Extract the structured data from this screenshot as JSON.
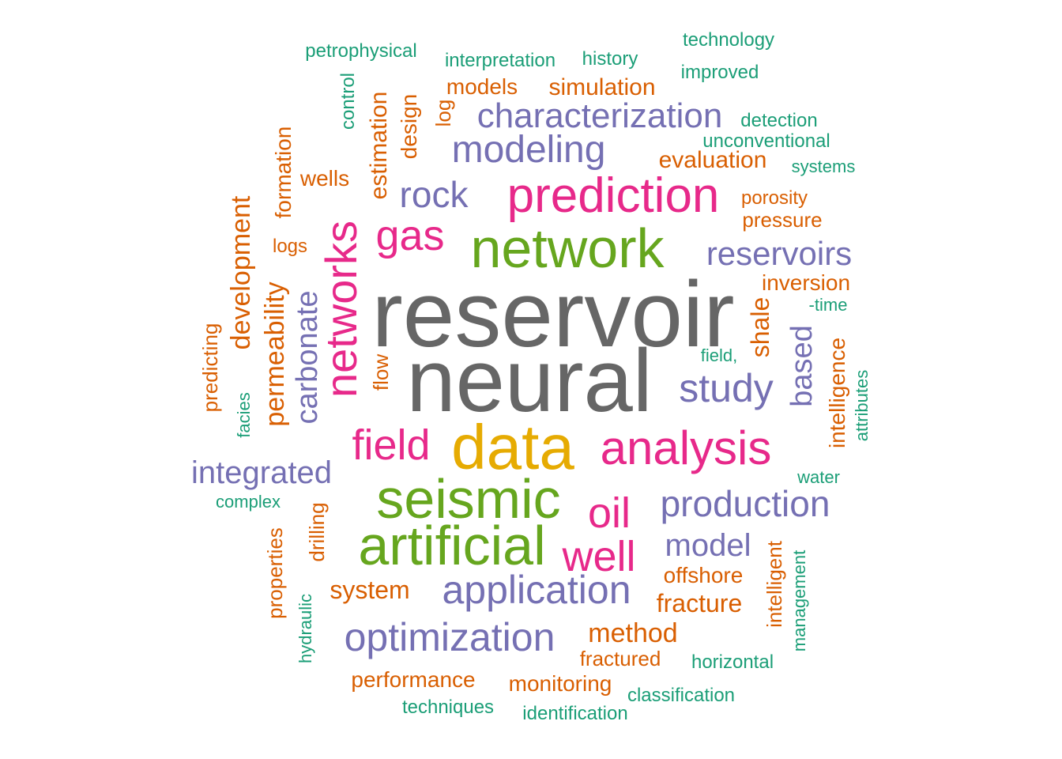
{
  "chart_data": {
    "type": "wordcloud",
    "palette": {
      "gray": "#666666",
      "green": "#66a61e",
      "pink": "#e7298a",
      "purple": "#7570b3",
      "orange": "#d95f02",
      "teal": "#1b9e77",
      "gold": "#e6ab02"
    },
    "words": [
      {
        "text": "reservoir",
        "color": "gray",
        "rotated": false
      },
      {
        "text": "neural",
        "color": "gray",
        "rotated": false
      },
      {
        "text": "data",
        "color": "gold",
        "rotated": false
      },
      {
        "text": "network",
        "color": "green",
        "rotated": false
      },
      {
        "text": "seismic",
        "color": "green",
        "rotated": false
      },
      {
        "text": "artificial",
        "color": "green",
        "rotated": false
      },
      {
        "text": "prediction",
        "color": "pink",
        "rotated": false
      },
      {
        "text": "analysis",
        "color": "pink",
        "rotated": false
      },
      {
        "text": "networks",
        "color": "pink",
        "rotated": true
      },
      {
        "text": "field",
        "color": "pink",
        "rotated": false
      },
      {
        "text": "gas",
        "color": "pink",
        "rotated": false
      },
      {
        "text": "oil",
        "color": "pink",
        "rotated": false
      },
      {
        "text": "well",
        "color": "pink",
        "rotated": false
      },
      {
        "text": "characterization",
        "color": "purple",
        "rotated": false
      },
      {
        "text": "modeling",
        "color": "purple",
        "rotated": false
      },
      {
        "text": "rock",
        "color": "purple",
        "rotated": false
      },
      {
        "text": "reservoirs",
        "color": "purple",
        "rotated": false
      },
      {
        "text": "study",
        "color": "purple",
        "rotated": false
      },
      {
        "text": "production",
        "color": "purple",
        "rotated": false
      },
      {
        "text": "application",
        "color": "purple",
        "rotated": false
      },
      {
        "text": "optimization",
        "color": "purple",
        "rotated": false
      },
      {
        "text": "integrated",
        "color": "purple",
        "rotated": false
      },
      {
        "text": "model",
        "color": "purple",
        "rotated": false
      },
      {
        "text": "carbonate",
        "color": "purple",
        "rotated": true
      },
      {
        "text": "based",
        "color": "purple",
        "rotated": true
      },
      {
        "text": "development",
        "color": "orange",
        "rotated": true
      },
      {
        "text": "permeability",
        "color": "orange",
        "rotated": true
      },
      {
        "text": "simulation",
        "color": "orange",
        "rotated": false
      },
      {
        "text": "models",
        "color": "orange",
        "rotated": false
      },
      {
        "text": "evaluation",
        "color": "orange",
        "rotated": false
      },
      {
        "text": "method",
        "color": "orange",
        "rotated": false
      },
      {
        "text": "system",
        "color": "orange",
        "rotated": false
      },
      {
        "text": "fracture",
        "color": "orange",
        "rotated": false
      },
      {
        "text": "offshore",
        "color": "orange",
        "rotated": false
      },
      {
        "text": "performance",
        "color": "orange",
        "rotated": false
      },
      {
        "text": "monitoring",
        "color": "orange",
        "rotated": false
      },
      {
        "text": "fractured",
        "color": "orange",
        "rotated": false
      },
      {
        "text": "inversion",
        "color": "orange",
        "rotated": false
      },
      {
        "text": "porosity",
        "color": "orange",
        "rotated": false
      },
      {
        "text": "pressure",
        "color": "orange",
        "rotated": false
      },
      {
        "text": "wells",
        "color": "orange",
        "rotated": false
      },
      {
        "text": "logs",
        "color": "orange",
        "rotated": false
      },
      {
        "text": "estimation",
        "color": "orange",
        "rotated": true
      },
      {
        "text": "design",
        "color": "orange",
        "rotated": true
      },
      {
        "text": "log",
        "color": "orange",
        "rotated": true
      },
      {
        "text": "formation",
        "color": "orange",
        "rotated": true
      },
      {
        "text": "predicting",
        "color": "orange",
        "rotated": true
      },
      {
        "text": "flow",
        "color": "orange",
        "rotated": true
      },
      {
        "text": "shale",
        "color": "orange",
        "rotated": true
      },
      {
        "text": "intelligence",
        "color": "orange",
        "rotated": true
      },
      {
        "text": "properties",
        "color": "orange",
        "rotated": true
      },
      {
        "text": "drilling",
        "color": "orange",
        "rotated": true
      },
      {
        "text": "intelligent",
        "color": "orange",
        "rotated": true
      },
      {
        "text": "petrophysical",
        "color": "teal",
        "rotated": false
      },
      {
        "text": "interpretation",
        "color": "teal",
        "rotated": false
      },
      {
        "text": "history",
        "color": "teal",
        "rotated": false
      },
      {
        "text": "technology",
        "color": "teal",
        "rotated": false
      },
      {
        "text": "improved",
        "color": "teal",
        "rotated": false
      },
      {
        "text": "detection",
        "color": "teal",
        "rotated": false
      },
      {
        "text": "unconventional",
        "color": "teal",
        "rotated": false
      },
      {
        "text": "systems",
        "color": "teal",
        "rotated": false
      },
      {
        "text": "-time",
        "color": "teal",
        "rotated": false
      },
      {
        "text": "field,",
        "color": "teal",
        "rotated": false
      },
      {
        "text": "water",
        "color": "teal",
        "rotated": false
      },
      {
        "text": "complex",
        "color": "teal",
        "rotated": false
      },
      {
        "text": "horizontal",
        "color": "teal",
        "rotated": false
      },
      {
        "text": "classification",
        "color": "teal",
        "rotated": false
      },
      {
        "text": "techniques",
        "color": "teal",
        "rotated": false
      },
      {
        "text": "identification",
        "color": "teal",
        "rotated": false
      },
      {
        "text": "control",
        "color": "teal",
        "rotated": true
      },
      {
        "text": "facies",
        "color": "teal",
        "rotated": true
      },
      {
        "text": "attributes",
        "color": "teal",
        "rotated": true
      },
      {
        "text": "hydraulic",
        "color": "teal",
        "rotated": true
      },
      {
        "text": "management",
        "color": "teal",
        "rotated": true
      }
    ]
  }
}
